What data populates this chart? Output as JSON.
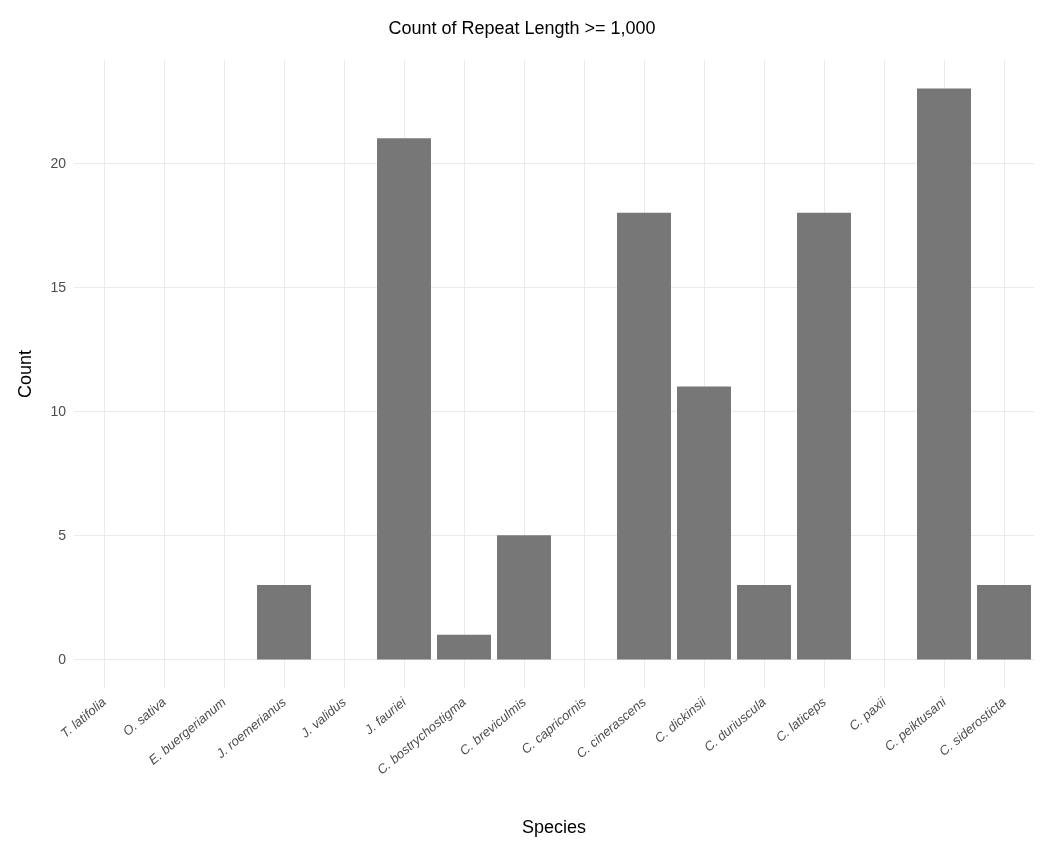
{
  "chart_data": {
    "type": "bar",
    "title": "Count of Repeat Length >= 1,000",
    "xlabel": "Species",
    "ylabel": "Count",
    "categories": [
      "T. latifolia",
      "O. sativa",
      "E. buergerianum",
      "J. roemerianus",
      "J. validus",
      "J. fauriei",
      "C. bostrychostigma",
      "C. breviculmis",
      "C. capricornis",
      "C. cinerascens",
      "C. dickinsii",
      "C. duriuscula",
      "C. laticeps",
      "C. paxii",
      "C. peiktusani",
      "C. siderosticta"
    ],
    "values": [
      0,
      0,
      0,
      3,
      0,
      21,
      1,
      5,
      0,
      18,
      11,
      3,
      18,
      0,
      23,
      3
    ],
    "color": "#777777",
    "ylim": [
      -1.15,
      24.15
    ],
    "yticks": [
      0,
      5,
      10,
      15,
      20
    ],
    "grid": true
  }
}
